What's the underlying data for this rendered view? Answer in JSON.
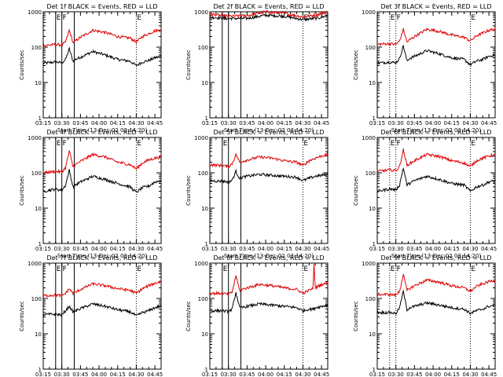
{
  "chart_data": {
    "type": "line",
    "layout": "3x3 grid",
    "x_tick_labels": [
      "03:15",
      "03:30",
      "03:45",
      "04:00",
      "04:15",
      "04:30",
      "04:45"
    ],
    "x_minutes_from_0315": [
      0,
      15,
      30,
      45,
      60,
      75,
      90
    ],
    "xlim_minutes_from_0315": [
      0,
      95
    ],
    "xlabel": "Start Time (13-Dec-02 03:14:20)",
    "ylabel": "Counts/sec",
    "y_scale": "log",
    "ylim": [
      1,
      1000
    ],
    "y_tick_labels": [
      "1",
      "10",
      "100",
      "1000"
    ],
    "colors": {
      "events": "#000000",
      "lld": "#e00000"
    },
    "legend_note": "BLACK = Events, RED = LLD",
    "panels": [
      {
        "title": "Det 1f BLACK = Events, RED = LLD",
        "x": [
          0,
          10,
          15,
          18,
          21,
          24,
          26,
          30,
          40,
          50,
          60,
          70,
          75,
          80,
          85,
          90,
          95
        ],
        "series": [
          {
            "name": "Events",
            "values": [
              35,
              38,
              36,
              45,
              90,
              40,
              45,
              52,
              75,
              60,
              45,
              40,
              30,
              38,
              42,
              50,
              55
            ]
          },
          {
            "name": "LLD",
            "values": [
              110,
              120,
              115,
              140,
              300,
              135,
              150,
              190,
              300,
              260,
              200,
              180,
              140,
              200,
              240,
              290,
              310
            ]
          }
        ],
        "markers": [
          {
            "label": "E",
            "x": 10,
            "style": "solid"
          },
          {
            "label": "F",
            "x": 15,
            "style": "solid"
          },
          {
            "label": "",
            "x": 25,
            "style": "solid"
          },
          {
            "label": "E",
            "x": 75,
            "style": "dotted"
          }
        ]
      },
      {
        "title": "Det 2f BLACK = Events, RED = LLD",
        "x": [
          0,
          15,
          30,
          45,
          60,
          75,
          85,
          90,
          95
        ],
        "series": [
          {
            "name": "Events",
            "values": [
              700,
              650,
              650,
              800,
              750,
              600,
              650,
              700,
              800
            ]
          },
          {
            "name": "LLD",
            "values": [
              850,
              750,
              780,
              1000,
              900,
              720,
              800,
              900,
              1000
            ]
          }
        ],
        "markers": [
          {
            "label": "E",
            "x": 10,
            "style": "solid"
          },
          {
            "label": "",
            "x": 15,
            "style": "solid"
          },
          {
            "label": "",
            "x": 25,
            "style": "solid"
          },
          {
            "label": "E",
            "x": 75,
            "style": "dotted"
          }
        ]
      },
      {
        "title": "Det 3f BLACK = Events, RED = LLD",
        "x": [
          0,
          10,
          15,
          18,
          21,
          24,
          26,
          30,
          40,
          50,
          60,
          70,
          75,
          80,
          85,
          90,
          95
        ],
        "series": [
          {
            "name": "Events",
            "values": [
              35,
              38,
              36,
              48,
              110,
              40,
              48,
              55,
              80,
              65,
              50,
              45,
              32,
              40,
              45,
              55,
              60
            ]
          },
          {
            "name": "LLD",
            "values": [
              120,
              125,
              120,
              150,
              320,
              140,
              160,
              200,
              320,
              280,
              220,
              190,
              150,
              210,
              250,
              300,
              320
            ]
          }
        ],
        "markers": [
          {
            "label": "E",
            "x": 10,
            "style": "dotted"
          },
          {
            "label": "F",
            "x": 15,
            "style": "dotted"
          },
          {
            "label": "E",
            "x": 75,
            "style": "dotted"
          }
        ]
      },
      {
        "title": "Det 4f BLACK = Events, RED = LLD",
        "x": [
          0,
          10,
          15,
          18,
          21,
          24,
          26,
          30,
          40,
          50,
          60,
          70,
          75,
          80,
          85,
          90,
          95
        ],
        "series": [
          {
            "name": "Events",
            "values": [
              30,
              35,
              32,
              45,
              120,
              40,
              45,
              55,
              80,
              65,
              50,
              40,
              28,
              38,
              42,
              55,
              60
            ]
          },
          {
            "name": "LLD",
            "values": [
              100,
              110,
              105,
              140,
              420,
              150,
              170,
              210,
              330,
              280,
              200,
              170,
              130,
              190,
              230,
              260,
              280
            ]
          }
        ],
        "markers": [
          {
            "label": "E",
            "x": 10,
            "style": "solid"
          },
          {
            "label": "F",
            "x": 15,
            "style": "solid"
          },
          {
            "label": "",
            "x": 25,
            "style": "solid"
          },
          {
            "label": "E",
            "x": 75,
            "style": "dotted"
          }
        ]
      },
      {
        "title": "Det 5f BLACK = Events, RED = LLD",
        "x": [
          0,
          10,
          15,
          18,
          21,
          24,
          26,
          30,
          40,
          50,
          60,
          70,
          75,
          80,
          85,
          90,
          95
        ],
        "series": [
          {
            "name": "Events",
            "values": [
              60,
              58,
              55,
              62,
              110,
              70,
              75,
              80,
              90,
              85,
              80,
              75,
              60,
              70,
              80,
              85,
              90
            ]
          },
          {
            "name": "LLD",
            "values": [
              170,
              160,
              150,
              180,
              330,
              200,
              210,
              230,
              280,
              260,
              220,
              200,
              160,
              220,
              260,
              300,
              330
            ]
          }
        ],
        "markers": [
          {
            "label": "E",
            "x": 10,
            "style": "solid"
          },
          {
            "label": "",
            "x": 15,
            "style": "solid"
          },
          {
            "label": "",
            "x": 25,
            "style": "solid"
          },
          {
            "label": "E",
            "x": 75,
            "style": "dotted"
          }
        ]
      },
      {
        "title": "Det 6f BLACK = Events, RED = LLD",
        "x": [
          0,
          10,
          15,
          18,
          21,
          24,
          26,
          30,
          40,
          50,
          60,
          70,
          75,
          80,
          85,
          90,
          95
        ],
        "series": [
          {
            "name": "Events",
            "values": [
              30,
              35,
              33,
              45,
              140,
              45,
              50,
              60,
              80,
              65,
              50,
              45,
              30,
              40,
              45,
              55,
              60
            ]
          },
          {
            "name": "LLD",
            "values": [
              110,
              120,
              115,
              150,
              450,
              160,
              180,
              220,
              330,
              290,
              220,
              190,
              150,
              220,
              260,
              300,
              320
            ]
          }
        ],
        "markers": [
          {
            "label": "E",
            "x": 10,
            "style": "dotted"
          },
          {
            "label": "F",
            "x": 15,
            "style": "dotted"
          },
          {
            "label": "E",
            "x": 75,
            "style": "dotted"
          }
        ]
      },
      {
        "title": "Det 7f BLACK = Events, RED = LLD",
        "x": [
          0,
          10,
          15,
          18,
          21,
          24,
          26,
          30,
          40,
          50,
          60,
          70,
          75,
          80,
          85,
          90,
          95
        ],
        "series": [
          {
            "name": "Events",
            "values": [
              35,
              36,
              34,
              45,
              60,
              42,
              45,
              52,
              70,
              60,
              48,
              42,
              32,
              40,
              45,
              55,
              62
            ]
          },
          {
            "name": "LLD",
            "values": [
              120,
              125,
              120,
              140,
              190,
              140,
              150,
              180,
              260,
              230,
              190,
              170,
              140,
              190,
              230,
              270,
              300
            ]
          }
        ],
        "markers": [
          {
            "label": "E",
            "x": 10,
            "style": "solid"
          },
          {
            "label": "F",
            "x": 15,
            "style": "solid"
          },
          {
            "label": "",
            "x": 25,
            "style": "solid"
          },
          {
            "label": "E",
            "x": 75,
            "style": "dotted"
          }
        ]
      },
      {
        "title": "Det 8f BLACK = Events, RED = LLD",
        "x": [
          0,
          10,
          15,
          18,
          21,
          24,
          26,
          30,
          40,
          50,
          60,
          70,
          75,
          80,
          83,
          84,
          85,
          90,
          95
        ],
        "series": [
          {
            "name": "Events",
            "values": [
              45,
              45,
              42,
              50,
              150,
              55,
              55,
              60,
              70,
              65,
              60,
              55,
              45,
              50,
              50,
              50,
              55,
              60,
              65
            ]
          },
          {
            "name": "LLD",
            "values": [
              140,
              140,
              130,
              150,
              450,
              170,
              180,
              200,
              250,
              230,
              200,
              180,
              140,
              170,
              190,
              900,
              200,
              250,
              270
            ]
          }
        ],
        "markers": [
          {
            "label": "E",
            "x": 10,
            "style": "solid"
          },
          {
            "label": "",
            "x": 15,
            "style": "solid"
          },
          {
            "label": "",
            "x": 25,
            "style": "solid"
          },
          {
            "label": "E",
            "x": 75,
            "style": "dotted"
          }
        ]
      },
      {
        "title": "Det 9f BLACK = Events, RED = LLD",
        "x": [
          0,
          10,
          15,
          18,
          21,
          24,
          26,
          30,
          40,
          50,
          60,
          70,
          75,
          80,
          85,
          90,
          95
        ],
        "series": [
          {
            "name": "Events",
            "values": [
              40,
              40,
              38,
              55,
              160,
              48,
              55,
              60,
              75,
              65,
              55,
              50,
              38,
              45,
              50,
              60,
              65
            ]
          },
          {
            "name": "LLD",
            "values": [
              130,
              130,
              125,
              160,
              480,
              170,
              190,
              230,
              330,
              290,
              230,
              200,
              160,
              220,
              260,
              300,
              330
            ]
          }
        ],
        "markers": [
          {
            "label": "E",
            "x": 10,
            "style": "dotted"
          },
          {
            "label": "F",
            "x": 15,
            "style": "dotted"
          },
          {
            "label": "E",
            "x": 75,
            "style": "dotted"
          }
        ]
      }
    ]
  }
}
